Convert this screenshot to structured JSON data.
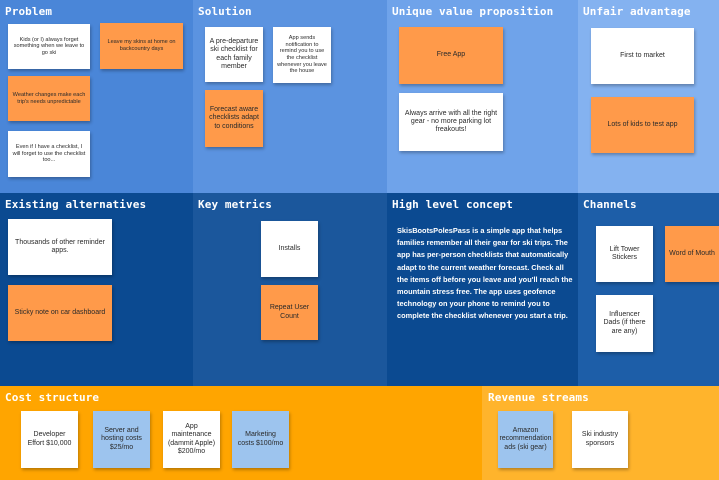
{
  "sections": {
    "problem": {
      "title": "Problem",
      "color": "#4a86d8"
    },
    "solution": {
      "title": "Solution",
      "color": "#5b93e0"
    },
    "uvp": {
      "title": "Unique value proposition",
      "color": "#6fa3ea"
    },
    "unfair": {
      "title": "Unfair advantage",
      "color": "#84b2f0"
    },
    "existing": {
      "title": "Existing alternatives",
      "color": "#0b4a91"
    },
    "metrics": {
      "title": "Key metrics",
      "color": "#1b579c"
    },
    "concept": {
      "title": "High level concept",
      "color": "#0b4a91",
      "text": "SkisBootsPolesPass is a simple app that helps families remember all their gear for ski trips. The app has per-person checklists that automatically adapt to the current weather forecast. Check all the items off before you leave and you'll reach the mountain stress free. The app uses geofence technology on your phone to remind you to complete the checklist whenever you start a trip."
    },
    "channels": {
      "title": "Channels",
      "color": "#1d5ea8"
    },
    "cost": {
      "title": "Cost structure",
      "color": "#ffa500"
    },
    "revenue": {
      "title": "Revenue streams",
      "color": "#ffb42c"
    }
  },
  "notes": {
    "problem_1": "Kids (or I) always forget something when we leave to go ski",
    "problem_2": "Leave my skins at home on backcountry days",
    "problem_3": "Weather changes make each trip's needs unpredictable",
    "problem_4": "Even if I have a checklist, I will forget to use the checklist too...",
    "solution_1": "A pre-departure ski checklist for each family member",
    "solution_2": "App sends notification to remind you to use the checklist whenever you leave the house",
    "solution_3": "Forecast aware checklists adapt to conditions",
    "uvp_1": "Free App",
    "uvp_2": "Always arrive with all the right gear - no more parking lot freakouts!",
    "unfair_1": "First to market",
    "unfair_2": "Lots of kids to test app",
    "existing_1": "Thousands of other reminder apps.",
    "existing_2": "Sticky note on car dashboard",
    "metrics_1": "Installs",
    "metrics_2": "Repeat User Count",
    "channels_1": "Lift Tower Stickers",
    "channels_2": "Word of Mouth",
    "channels_3": "Influencer Dads (if there are any)",
    "cost_1": "Developer Effort $10,000",
    "cost_2": "Server and hosting costs $25/mo",
    "cost_3": "App maintenance (dammit Apple) $200/mo",
    "cost_4": "Marketing costs $100/mo",
    "revenue_1": "Amazon recommendation ads (ski gear)",
    "revenue_2": "Ski industry sponsors"
  },
  "colors": {
    "note_white": "#ffffff",
    "note_orange": "#ff9a4a",
    "note_blue": "#9dc4ee"
  }
}
